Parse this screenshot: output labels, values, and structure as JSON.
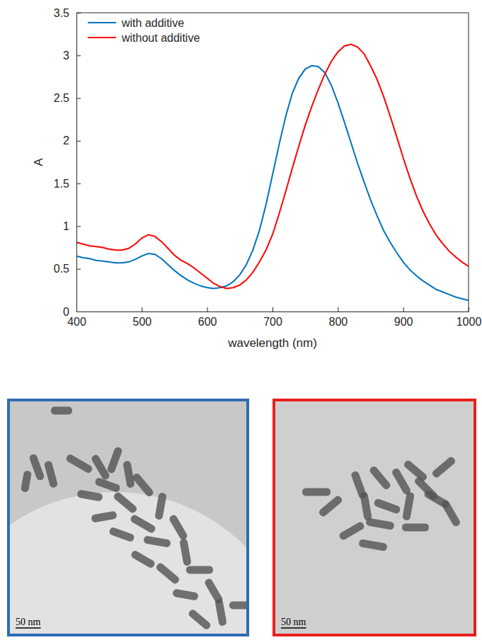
{
  "chart_data": {
    "type": "line",
    "x_label": "wavelength (nm)",
    "y_label": "A",
    "x": [
      400,
      410,
      420,
      430,
      440,
      450,
      460,
      470,
      480,
      490,
      500,
      510,
      520,
      530,
      540,
      550,
      560,
      570,
      580,
      590,
      600,
      610,
      620,
      630,
      640,
      650,
      660,
      670,
      680,
      690,
      700,
      710,
      720,
      730,
      740,
      750,
      760,
      770,
      780,
      790,
      800,
      810,
      820,
      830,
      840,
      850,
      860,
      870,
      880,
      890,
      900,
      910,
      920,
      930,
      940,
      950,
      960,
      970,
      980,
      990,
      1000
    ],
    "series": [
      {
        "name": "with additive",
        "color": "#0072bd",
        "values": [
          0.65,
          0.63,
          0.62,
          0.6,
          0.59,
          0.58,
          0.57,
          0.57,
          0.58,
          0.61,
          0.65,
          0.68,
          0.67,
          0.62,
          0.55,
          0.48,
          0.42,
          0.37,
          0.33,
          0.3,
          0.28,
          0.27,
          0.28,
          0.3,
          0.35,
          0.43,
          0.55,
          0.72,
          0.95,
          1.25,
          1.6,
          1.95,
          2.28,
          2.55,
          2.73,
          2.84,
          2.88,
          2.87,
          2.8,
          2.65,
          2.45,
          2.22,
          1.98,
          1.74,
          1.52,
          1.31,
          1.12,
          0.95,
          0.81,
          0.69,
          0.58,
          0.49,
          0.42,
          0.36,
          0.31,
          0.26,
          0.23,
          0.2,
          0.17,
          0.15,
          0.13
        ]
      },
      {
        "name": "without additive",
        "color": "#ff0000",
        "values": [
          0.81,
          0.79,
          0.77,
          0.76,
          0.75,
          0.73,
          0.72,
          0.72,
          0.74,
          0.79,
          0.86,
          0.9,
          0.88,
          0.82,
          0.74,
          0.66,
          0.6,
          0.56,
          0.51,
          0.45,
          0.39,
          0.33,
          0.29,
          0.27,
          0.28,
          0.31,
          0.37,
          0.46,
          0.58,
          0.72,
          0.9,
          1.14,
          1.4,
          1.67,
          1.93,
          2.18,
          2.4,
          2.6,
          2.78,
          2.93,
          3.04,
          3.11,
          3.13,
          3.1,
          3.02,
          2.88,
          2.72,
          2.52,
          2.29,
          2.05,
          1.8,
          1.57,
          1.36,
          1.18,
          1.03,
          0.9,
          0.8,
          0.71,
          0.64,
          0.58,
          0.53
        ]
      }
    ],
    "xlim": [
      400,
      1000
    ],
    "xticks": [
      400,
      500,
      600,
      700,
      800,
      900,
      1000
    ],
    "ylim": [
      0,
      3.5
    ],
    "yticks": [
      0,
      0.5,
      1,
      1.5,
      2,
      2.5,
      3,
      3.5
    ],
    "legend": "upper left",
    "grid": false
  },
  "images": [
    {
      "color": "#2f6db5",
      "scale_bar": "50 nm"
    },
    {
      "color": "#e8201c",
      "scale_bar": "50 nm"
    }
  ]
}
